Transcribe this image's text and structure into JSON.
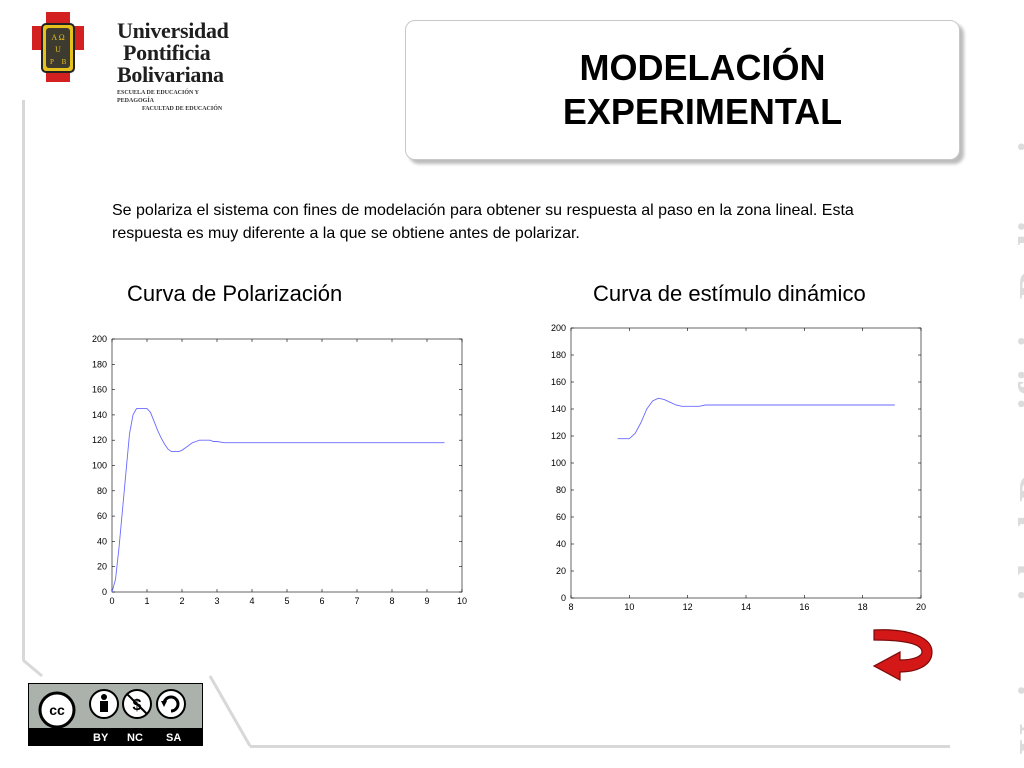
{
  "logo": {
    "name_lines": [
      "Universidad",
      "Pontificia",
      "Bolivariana"
    ],
    "sub_lines": [
      "ESCUELA DE EDUCACIÓN Y PEDAGOGÍA",
      "FACULTAD DE EDUCACIÓN"
    ],
    "shield_text": [
      "A Ω",
      "U",
      "P",
      "B"
    ]
  },
  "title": {
    "line1": "MODELACIÓN",
    "line2": "EXPERIMENTAL"
  },
  "body_text": "Se polariza el sistema con fines de modelación para obtener su respuesta al paso en la zona lineal. Esta respuesta es muy diferente a la que se obtiene antes de polarizar.",
  "vertical_brand": "Universidad Pontificia Bolivariana",
  "license": {
    "cc": "cc",
    "labels": [
      "BY",
      "NC",
      "SA"
    ]
  },
  "colors": {
    "series": "#6a6aff",
    "arrow": "#d41818",
    "frame": "#d8d8d8"
  },
  "chart_data": [
    {
      "type": "line",
      "title": "Curva de Polarización",
      "xlim": [
        0,
        10
      ],
      "ylim": [
        0,
        200
      ],
      "xticks": [
        0,
        1,
        2,
        3,
        4,
        5,
        6,
        7,
        8,
        9,
        10
      ],
      "yticks": [
        0,
        20,
        40,
        60,
        80,
        100,
        120,
        140,
        160,
        180,
        200
      ],
      "grid": false,
      "series": [
        {
          "x": [
            0,
            0.1,
            0.2,
            0.3,
            0.4,
            0.5,
            0.6,
            0.7,
            0.8,
            0.9,
            1.0,
            1.1,
            1.2,
            1.3,
            1.4,
            1.5,
            1.6,
            1.7,
            1.8,
            1.9,
            2.0,
            2.1,
            2.2,
            2.3,
            2.4,
            2.5,
            2.6,
            2.7,
            2.8,
            2.9,
            3.0,
            3.2,
            3.4,
            3.6,
            3.8,
            4.0,
            4.5,
            5.0,
            6.0,
            7.0,
            8.0,
            9.0,
            9.5
          ],
          "y": [
            0,
            10,
            35,
            65,
            95,
            125,
            140,
            145,
            145,
            145,
            145,
            142,
            135,
            128,
            122,
            117,
            113,
            111,
            111,
            111,
            112,
            114,
            116,
            118,
            119,
            120,
            120,
            120,
            120,
            119,
            119,
            118,
            118,
            118,
            118,
            118,
            118,
            118,
            118,
            118,
            118,
            118,
            118
          ]
        }
      ]
    },
    {
      "type": "line",
      "title": "Curva de estímulo dinámico",
      "xlim": [
        8,
        20
      ],
      "ylim": [
        0,
        200
      ],
      "xticks": [
        8,
        10,
        12,
        14,
        16,
        18,
        20
      ],
      "yticks": [
        0,
        20,
        40,
        60,
        80,
        100,
        120,
        140,
        160,
        180,
        200
      ],
      "grid": false,
      "series": [
        {
          "x": [
            9.6,
            10.0,
            10.2,
            10.4,
            10.6,
            10.8,
            11.0,
            11.2,
            11.4,
            11.6,
            11.8,
            12.0,
            12.2,
            12.4,
            12.6,
            12.8,
            13.0,
            14.0,
            15.0,
            16.0,
            17.0,
            18.0,
            19.0,
            19.1
          ],
          "y": [
            118,
            118,
            122,
            130,
            140,
            146,
            148,
            147,
            145,
            143,
            142,
            142,
            142,
            142,
            143,
            143,
            143,
            143,
            143,
            143,
            143,
            143,
            143,
            143
          ]
        }
      ]
    }
  ]
}
